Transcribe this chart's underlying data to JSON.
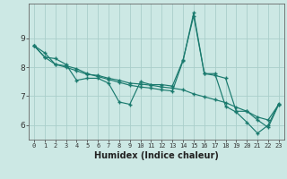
{
  "xlabel": "Humidex (Indice chaleur)",
  "background_color": "#cce8e4",
  "grid_color": "#aaceca",
  "line_color": "#1a7a6e",
  "xlim": [
    -0.5,
    23.5
  ],
  "ylim": [
    5.5,
    10.2
  ],
  "xticks": [
    0,
    1,
    2,
    3,
    4,
    5,
    6,
    7,
    8,
    9,
    10,
    11,
    12,
    13,
    14,
    15,
    16,
    17,
    18,
    19,
    20,
    21,
    22,
    23
  ],
  "yticks": [
    6,
    7,
    8,
    9
  ],
  "series": [
    [
      8.75,
      8.35,
      8.3,
      8.1,
      7.55,
      7.62,
      7.62,
      7.45,
      6.8,
      6.72,
      7.5,
      7.4,
      7.4,
      7.35,
      8.25,
      9.78,
      7.78,
      7.78,
      6.65,
      6.45,
      6.1,
      5.72,
      6.0,
      6.75
    ],
    [
      8.75,
      8.35,
      8.1,
      8.0,
      7.88,
      7.75,
      7.72,
      7.62,
      7.55,
      7.45,
      7.42,
      7.38,
      7.32,
      7.28,
      7.22,
      7.08,
      6.98,
      6.88,
      6.78,
      6.62,
      6.48,
      6.28,
      6.18,
      6.72
    ],
    [
      8.75,
      8.5,
      8.1,
      8.05,
      7.95,
      7.78,
      7.68,
      7.58,
      7.48,
      7.38,
      7.32,
      7.28,
      7.22,
      7.18,
      8.22,
      9.88,
      7.78,
      7.72,
      7.62,
      6.48,
      6.48,
      6.18,
      5.92,
      6.72
    ]
  ]
}
